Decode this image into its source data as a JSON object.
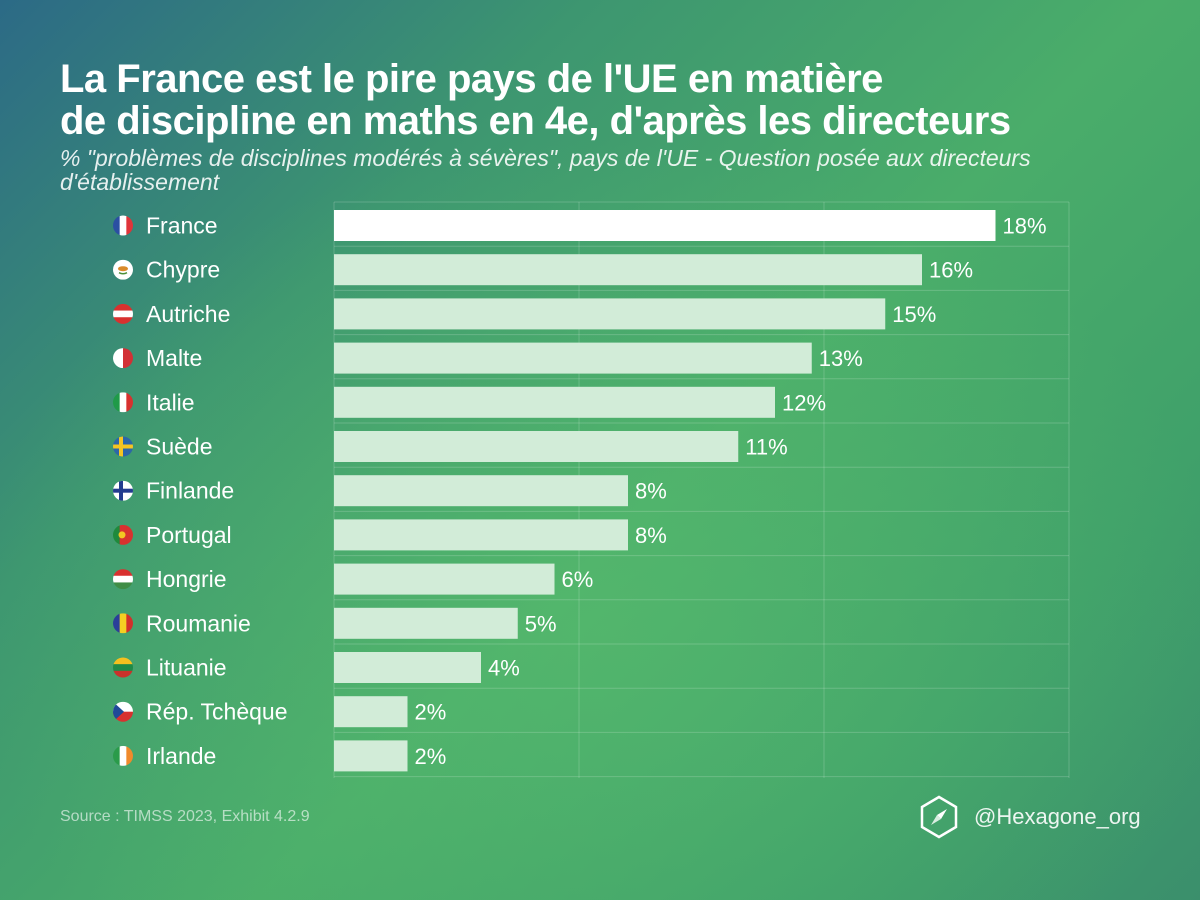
{
  "title_line1": "La France est le pire pays de l'UE en matière",
  "title_line2": "de discipline en maths en 4e, d'après les directeurs",
  "subtitle": "% \"problèmes de disciplines modérés à sévères\", pays de l'UE - Question posée aux directeurs d'établissement",
  "source": "Source : TIMSS 2023, Exhibit 4.2.9",
  "brand": "@Hexagone_org",
  "colors": {
    "highlight_bar": "#ffffff",
    "bar": "#d2ecd8",
    "grid": "rgba(255,255,255,0.18)"
  },
  "chart_data": {
    "type": "bar",
    "orientation": "horizontal",
    "categories": [
      "France",
      "Chypre",
      "Autriche",
      "Malte",
      "Italie",
      "Suède",
      "Finlande",
      "Portugal",
      "Hongrie",
      "Roumanie",
      "Lituanie",
      "Rép. Tchèque",
      "Irlande"
    ],
    "values": [
      18,
      16,
      15,
      13,
      12,
      11,
      8,
      8,
      6,
      5,
      4,
      2,
      2
    ],
    "labels": [
      "18%",
      "16%",
      "15%",
      "13%",
      "12%",
      "11%",
      "8%",
      "8%",
      "6%",
      "5%",
      "4%",
      "2%",
      "2%"
    ],
    "flags": [
      "flag-france-icon",
      "flag-chypre-icon",
      "flag-autriche-icon",
      "flag-malte-icon",
      "flag-italie-icon",
      "flag-suede-icon",
      "flag-finlande-icon",
      "flag-portugal-icon",
      "flag-hongrie-icon",
      "flag-roumanie-icon",
      "flag-lituanie-icon",
      "flag-rep-tcheque-icon",
      "flag-irlande-icon"
    ],
    "highlight": "France",
    "xlim": [
      0,
      20
    ],
    "grid": true
  }
}
